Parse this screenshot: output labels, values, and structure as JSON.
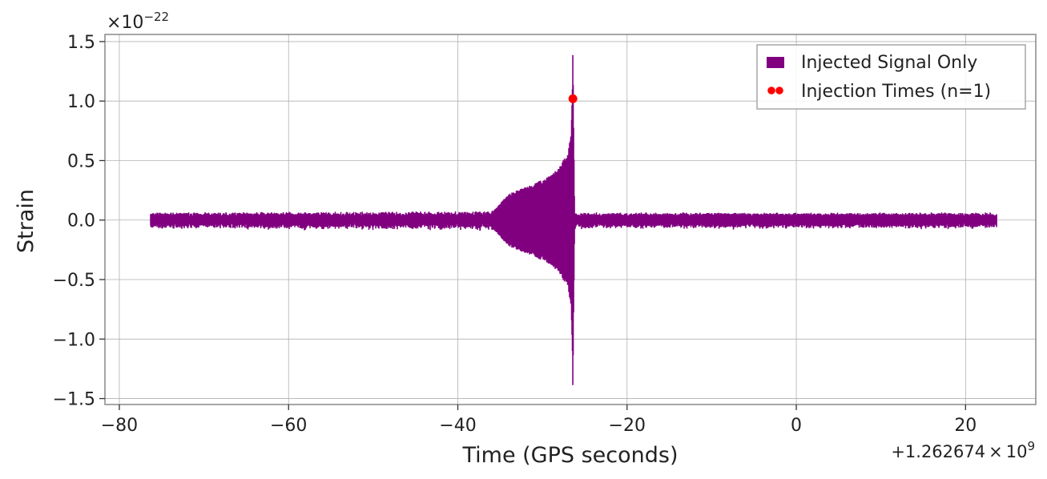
{
  "chart_data": {
    "type": "line",
    "xlabel": "Time (GPS seconds)",
    "ylabel": "Strain",
    "x_offset_label": "+1.262674",
    "x_offset_times": "×",
    "x_offset_base": "10",
    "x_offset_exp": "9",
    "y_scale_times": "×",
    "y_scale_base": "10",
    "y_scale_exp": "−22",
    "xlim": [
      -81.7,
      28.3
    ],
    "ylim": [
      -1.55,
      1.56
    ],
    "x_ticks": [
      -80,
      -60,
      -40,
      -20,
      0,
      20
    ],
    "x_tick_labels": [
      "−80",
      "−60",
      "−40",
      "−20",
      "0",
      "20"
    ],
    "y_ticks": [
      -1.5,
      -1.0,
      -0.5,
      0.0,
      0.5,
      1.0,
      1.5
    ],
    "y_tick_labels": [
      "−1.5",
      "−1.0",
      "−0.5",
      "0.0",
      "0.5",
      "1.0",
      "1.5"
    ],
    "grid": true,
    "legend_position": "top-right",
    "colors": {
      "signal": "#800080",
      "injection": "#ff0000",
      "grid": "#b0b0b0",
      "frame": "#888888"
    },
    "series": [
      {
        "name": "Injected Signal Only",
        "style": "filled-oscillation",
        "x_range": [
          -76.3,
          23.7
        ],
        "noise_amplitude": 0.045,
        "envelope": [
          {
            "x": -76.3,
            "y": 0.05
          },
          {
            "x": -36.0,
            "y": 0.06
          },
          {
            "x": -34.0,
            "y": 0.22
          },
          {
            "x": -32.0,
            "y": 0.28
          },
          {
            "x": -30.0,
            "y": 0.34
          },
          {
            "x": -28.0,
            "y": 0.44
          },
          {
            "x": -27.0,
            "y": 0.58
          },
          {
            "x": -26.6,
            "y": 0.72
          },
          {
            "x": -26.4,
            "y": 1.43
          },
          {
            "x": -26.2,
            "y": 0.05
          },
          {
            "x": 23.7,
            "y": 0.05
          }
        ]
      },
      {
        "name": "Injection Times (n=1)",
        "style": "points",
        "points": [
          {
            "x": -26.4,
            "y": 1.02
          }
        ]
      }
    ]
  }
}
